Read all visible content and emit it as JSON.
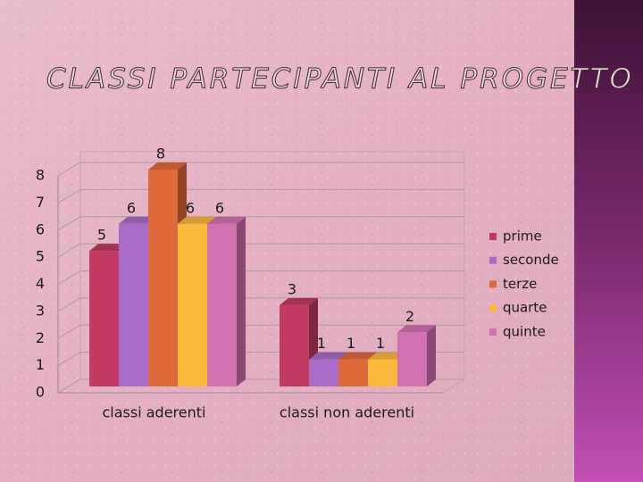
{
  "chart_data": {
    "type": "bar",
    "title": "CLASSI PARTECIPANTI AL PROGETTO",
    "categories": [
      "classi aderenti",
      "classi non aderenti"
    ],
    "series": [
      {
        "name": "prime",
        "color": "#c23a62",
        "values": [
          5,
          3
        ]
      },
      {
        "name": "seconde",
        "color": "#a96dc9",
        "values": [
          6,
          1
        ]
      },
      {
        "name": "terze",
        "color": "#e0693a",
        "values": [
          8,
          1
        ]
      },
      {
        "name": "quarte",
        "color": "#fbb93c",
        "values": [
          6,
          1
        ]
      },
      {
        "name": "quinte",
        "color": "#d271b2",
        "values": [
          6,
          2
        ]
      }
    ],
    "ylim": [
      0,
      8
    ],
    "yticks": [
      0,
      1,
      2,
      3,
      4,
      5,
      6,
      7,
      8
    ],
    "grid": true,
    "legend": "right"
  }
}
